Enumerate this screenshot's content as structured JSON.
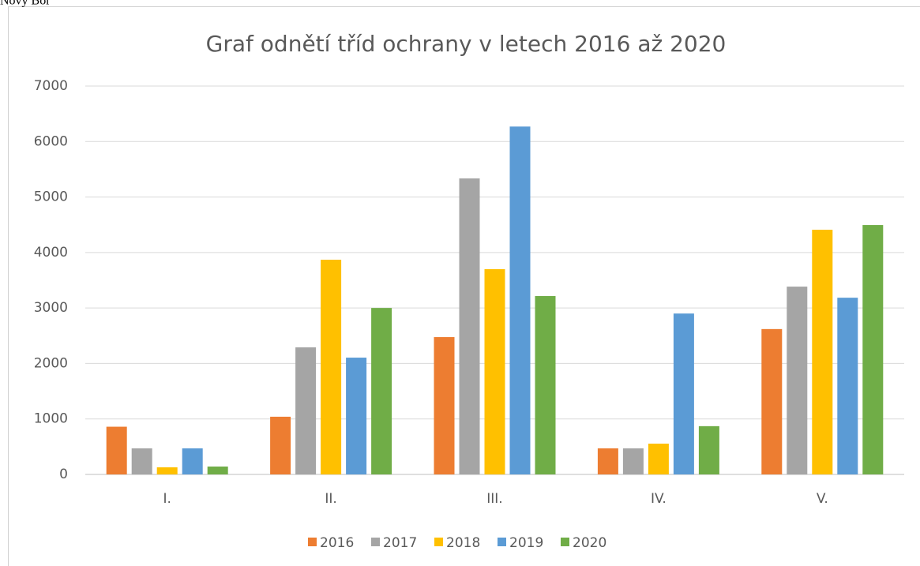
{
  "caption": "Nový Bor",
  "chart_data": {
    "type": "bar",
    "title": "Graf odnětí tříd ochrany v letech 2016 až 2020",
    "categories": [
      "I.",
      "II.",
      "III.",
      "IV.",
      "V."
    ],
    "series": [
      {
        "name": "2016",
        "color": "#ed7d31",
        "values": [
          860,
          1040,
          2475,
          470,
          2620
        ]
      },
      {
        "name": "2017",
        "color": "#a5a5a5",
        "values": [
          470,
          2290,
          5335,
          470,
          3385
        ]
      },
      {
        "name": "2018",
        "color": "#ffc000",
        "values": [
          128,
          3870,
          3700,
          555,
          4410
        ]
      },
      {
        "name": "2019",
        "color": "#5b9bd5",
        "values": [
          470,
          2105,
          6270,
          2900,
          3185
        ]
      },
      {
        "name": "2020",
        "color": "#70ad47",
        "values": [
          142,
          3000,
          3215,
          870,
          4495
        ]
      }
    ],
    "ylim": [
      0,
      7000
    ],
    "yticks": [
      0,
      1000,
      2000,
      3000,
      4000,
      5000,
      6000,
      7000
    ],
    "grid": true,
    "legend": "bottom"
  }
}
